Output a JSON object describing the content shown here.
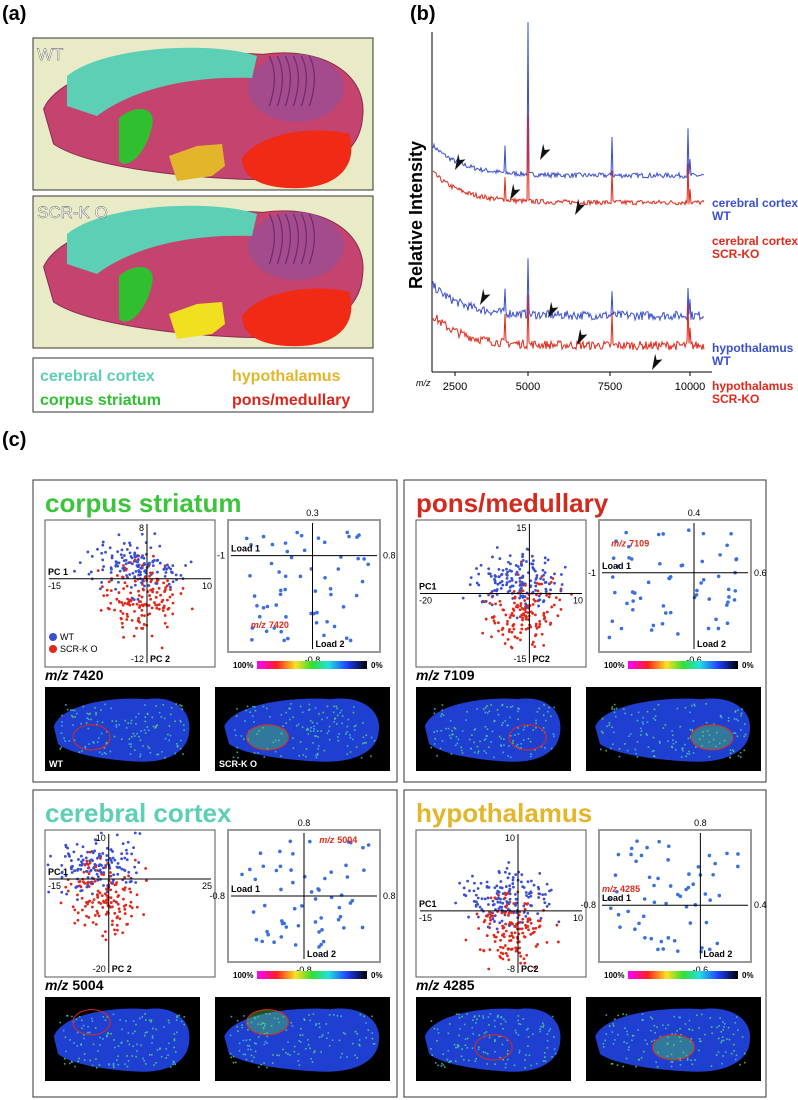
{
  "panel_a": {
    "label": "(a)",
    "images": [
      "WT",
      "SCR-K O"
    ],
    "legend": [
      {
        "text": "cerebral cortex",
        "color": "#5ccfb5"
      },
      {
        "text": "hypothalamus",
        "color": "#e3b52a"
      },
      {
        "text": "corpus striatum",
        "color": "#2fbf2f"
      },
      {
        "text": "pons/medullary",
        "color": "#d42a1e"
      }
    ]
  },
  "panel_b": {
    "label": "(b)",
    "y_label": "Relative Intensity",
    "x_unit": "m/z",
    "x_ticks": [
      "2500",
      "5000",
      "7500",
      "10000"
    ],
    "traces": [
      {
        "name": "cerebral cortex",
        "group": "WT",
        "color": "#3a4fd0"
      },
      {
        "name": "cerebral cortex",
        "group": "SCR-KO",
        "color": "#e2281a"
      },
      {
        "name": "hypothalamus",
        "group": "WT",
        "color": "#3a4fd0"
      },
      {
        "name": "hypothalamus",
        "group": "SCR-KO",
        "color": "#e2281a"
      }
    ]
  },
  "panel_c": {
    "label": "(c)",
    "panels": [
      {
        "title": "corpus striatum",
        "color": "#3cc43c",
        "score": {
          "top": "8",
          "left": "-15",
          "right": "10",
          "bottom": "-12",
          "x_label": "PC 1",
          "y_label": "PC 2"
        },
        "legend": [
          "WT",
          "SCR-K O"
        ],
        "loading": {
          "top": "0.3",
          "left": "-1",
          "right": "0.8",
          "bottom": "-0.8",
          "x_label": "Load 1",
          "y_label": "Load 2",
          "highlight": {
            "unit": "m/z",
            "value": "7420"
          }
        },
        "colorbar": {
          "max": "100%",
          "min": "0%"
        },
        "ion": {
          "unit": "m/z",
          "value": "7420"
        },
        "image_labels": [
          "WT",
          "SCR-K O"
        ]
      },
      {
        "title": "pons/medullary",
        "color": "#d42a1e",
        "score": {
          "top": "15",
          "left": "-20",
          "right": "10",
          "bottom": "-15",
          "x_label": "PC1",
          "y_label": "PC2"
        },
        "loading": {
          "top": "0.4",
          "left": "-1",
          "right": "0.6",
          "bottom": "-0.6",
          "x_label": "Load 1",
          "y_label": "Load 2",
          "highlight": {
            "unit": "m/z",
            "value": "7109"
          }
        },
        "colorbar": {
          "max": "100%",
          "min": "0%"
        },
        "ion": {
          "unit": "m/z",
          "value": "7109"
        }
      },
      {
        "title": "cerebral cortex",
        "color": "#5ccfb5",
        "score": {
          "top": "10",
          "left": "-15",
          "right": "25",
          "bottom": "-20",
          "x_label": "PC 1",
          "y_label": "PC 2"
        },
        "loading": {
          "top": "0.8",
          "left": "-0.8",
          "right": "0.8",
          "bottom": "-0.8",
          "x_label": "Load 1",
          "y_label": "Load 2",
          "highlight": {
            "unit": "m/z",
            "value": "5004"
          }
        },
        "colorbar": {
          "max": "100%",
          "min": "0%"
        },
        "ion": {
          "unit": "m/z",
          "value": "5004"
        }
      },
      {
        "title": "hypothalamus",
        "color": "#e3b52a",
        "score": {
          "top": "10",
          "left": "-15",
          "right": "10",
          "bottom": "-8",
          "x_label": "PC1",
          "y_label": "PC2"
        },
        "loading": {
          "top": "0.8",
          "left": "-0.8",
          "right": "0.4",
          "bottom": "-0.6",
          "x_label": "Load 1",
          "y_label": "Load 2",
          "highlight": {
            "unit": "m/z",
            "value": "4285"
          }
        },
        "colorbar": {
          "max": "100%",
          "min": "0%"
        },
        "ion": {
          "unit": "m/z",
          "value": "4285"
        }
      }
    ]
  }
}
